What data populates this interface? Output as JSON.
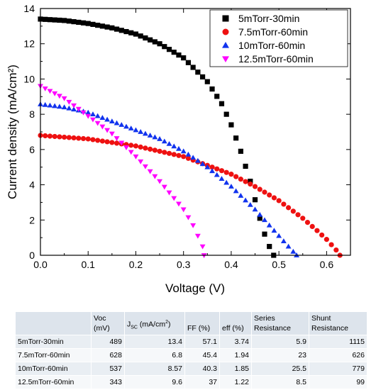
{
  "chart_data": {
    "type": "scatter",
    "xlabel": "Voltage (V)",
    "ylabel": "Current density (mA/cm²)",
    "xlim": [
      0,
      0.65
    ],
    "ylim": [
      0,
      14
    ],
    "x_ticks": [
      "0.0",
      "0.1",
      "0.2",
      "0.3",
      "0.4",
      "0.5",
      "0.6"
    ],
    "y_ticks": [
      "0",
      "2",
      "4",
      "6",
      "8",
      "10",
      "12",
      "14"
    ],
    "grid": false,
    "legend_position": "top-right",
    "series": [
      {
        "name": "5mTorr-30min",
        "marker": "square",
        "color": "#000000",
        "x": [
          0.0,
          0.05,
          0.1,
          0.15,
          0.2,
          0.25,
          0.3,
          0.35,
          0.38,
          0.4,
          0.42,
          0.44,
          0.46,
          0.47,
          0.48,
          0.489
        ],
        "y": [
          13.4,
          13.32,
          13.15,
          12.9,
          12.55,
          12.0,
          11.2,
          9.85,
          8.6,
          7.4,
          5.9,
          4.2,
          2.1,
          1.2,
          0.5,
          0.0
        ]
      },
      {
        "name": "7.5mTorr-60min",
        "marker": "circle",
        "color": "#ee1111",
        "x": [
          0.0,
          0.1,
          0.2,
          0.3,
          0.35,
          0.4,
          0.45,
          0.5,
          0.55,
          0.58,
          0.6,
          0.62,
          0.628
        ],
        "y": [
          6.8,
          6.6,
          6.2,
          5.6,
          5.1,
          4.6,
          3.9,
          3.1,
          2.1,
          1.4,
          0.9,
          0.3,
          0.0
        ]
      },
      {
        "name": "10mTorr-60min",
        "marker": "triangle-up",
        "color": "#1133ee",
        "x": [
          0.0,
          0.05,
          0.1,
          0.15,
          0.2,
          0.25,
          0.3,
          0.35,
          0.4,
          0.45,
          0.5,
          0.52,
          0.537
        ],
        "y": [
          8.57,
          8.4,
          8.1,
          7.6,
          7.1,
          6.6,
          5.9,
          5.0,
          3.9,
          2.6,
          1.1,
          0.5,
          0.0
        ]
      },
      {
        "name": "12.5mTorr-60min",
        "marker": "triangle-down",
        "color": "#ff00ff",
        "x": [
          0.0,
          0.05,
          0.1,
          0.15,
          0.2,
          0.25,
          0.3,
          0.32,
          0.34,
          0.343
        ],
        "y": [
          9.6,
          8.9,
          7.9,
          6.9,
          5.6,
          4.2,
          2.6,
          1.7,
          0.5,
          0.0
        ]
      }
    ]
  },
  "table": {
    "headers": [
      "",
      "Voc (mV)",
      "J_SC (mA/cm²)",
      "FF (%)",
      "eff (%)",
      "Series Resistance",
      "Shunt Resistance"
    ],
    "header_parts": {
      "voc_line1": "Voc",
      "voc_line2": "(mV)",
      "jsc_main": "J",
      "jsc_sub": "SC",
      "jsc_rest": " (mA/cm",
      "jsc_sup": "2",
      "jsc_end": ")",
      "ff": "FF (%)",
      "eff": "eff (%)",
      "series_line1": "Series",
      "series_line2": "Resistance",
      "shunt": "Shunt Resistance"
    },
    "rows": [
      [
        "5mTorr-30min",
        "489",
        "13.4",
        "57.1",
        "3.74",
        "5.9",
        "1115"
      ],
      [
        "7.5mTorr-60min",
        "628",
        "6.8",
        "45.4",
        "1.94",
        "23",
        "626"
      ],
      [
        "10mTorr-60min",
        "537",
        "8.57",
        "40.3",
        "1.85",
        "25.5",
        "779"
      ],
      [
        "12.5mTorr-60min",
        "343",
        "9.6",
        "37",
        "1.22",
        "8.5",
        "99"
      ]
    ]
  }
}
